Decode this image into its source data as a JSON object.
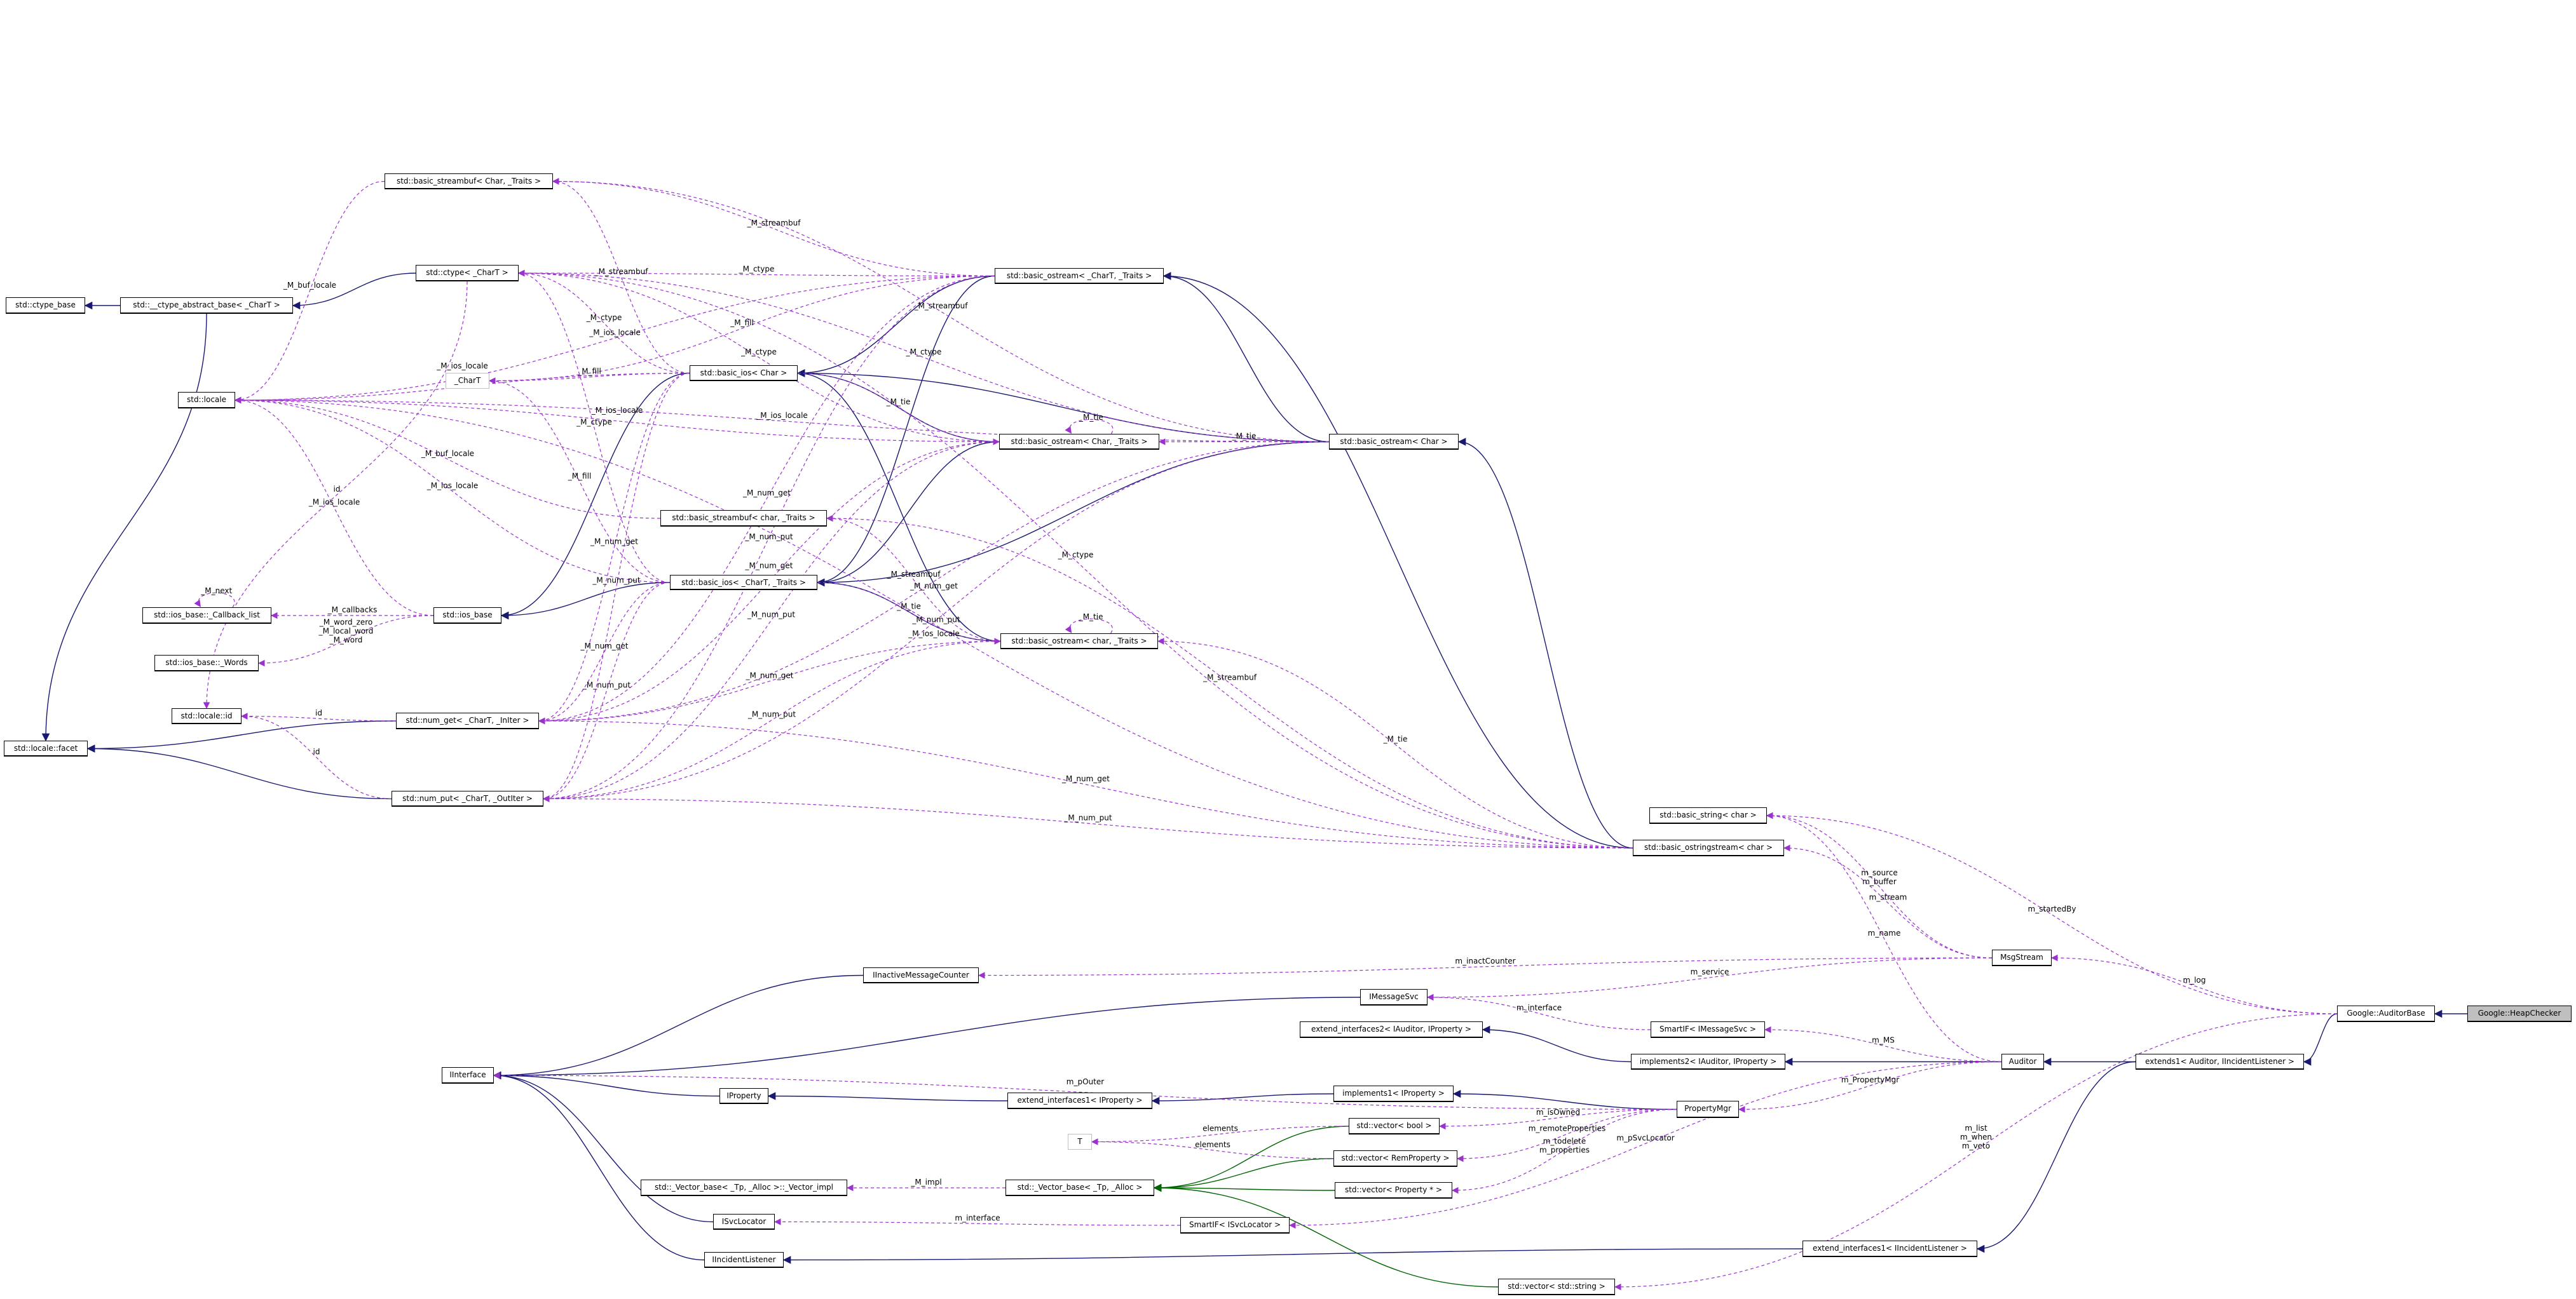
{
  "diagram": {
    "colors": {
      "inheritance": "#191970",
      "template": "#006400",
      "usage": "#9a32cd",
      "highlight_fill": "#bfbfbf",
      "undocumented_border": "#bfbfbf"
    },
    "nodes": [
      {
        "id": "ctype_base",
        "label": "std::ctype_base"
      },
      {
        "id": "ctab",
        "label": "std::__ctype_abstract_base< _CharT >"
      },
      {
        "id": "locale",
        "label": "std::locale"
      },
      {
        "id": "facet",
        "label": "std::locale::facet"
      },
      {
        "id": "lid",
        "label": "std::locale::id"
      },
      {
        "id": "cbl",
        "label": "std::ios_base::_Callback_list"
      },
      {
        "id": "words",
        "label": "std::ios_base::_Words"
      },
      {
        "id": "iosbase",
        "label": "std::ios_base"
      },
      {
        "id": "numget",
        "label": "std::num_get< _CharT, _InIter >"
      },
      {
        "id": "numput",
        "label": "std::num_put< _CharT, _OutIter >"
      },
      {
        "id": "ctype",
        "label": "std::ctype< _CharT >"
      },
      {
        "id": "sbChar",
        "label": "std::basic_streambuf< Char, _Traits >"
      },
      {
        "id": "charT",
        "label": "_CharT",
        "style": "gray"
      },
      {
        "id": "biosChar",
        "label": "std::basic_ios< Char >"
      },
      {
        "id": "biosT",
        "label": "std::basic_ios< _CharT, _Traits >"
      },
      {
        "id": "sbchar",
        "label": "std::basic_streambuf< char, _Traits >"
      },
      {
        "id": "boT",
        "label": "std::basic_ostream< _CharT, _Traits >"
      },
      {
        "id": "boCharT",
        "label": "std::basic_ostream< Char, _Traits >"
      },
      {
        "id": "bochar",
        "label": "std::basic_ostream< char, _Traits >"
      },
      {
        "id": "boChar",
        "label": "std::basic_ostream< Char >"
      },
      {
        "id": "bstring",
        "label": "std::basic_string< char >"
      },
      {
        "id": "boss",
        "label": "std::basic_ostringstream< char >"
      },
      {
        "id": "msgstream",
        "label": "MsgStream"
      },
      {
        "id": "imc",
        "label": "IInactiveMessageCounter"
      },
      {
        "id": "imsgsvc",
        "label": "IMessageSvc"
      },
      {
        "id": "ei2",
        "label": "extend_interfaces2< IAuditor, IProperty >"
      },
      {
        "id": "smsvc",
        "label": "SmartIF< IMessageSvc >"
      },
      {
        "id": "impl2",
        "label": "implements2< IAuditor, IProperty >"
      },
      {
        "id": "auditor",
        "label": "Auditor"
      },
      {
        "id": "extends1",
        "label": "extends1< Auditor, IIncidentListener >"
      },
      {
        "id": "abase",
        "label": "Google::AuditorBase"
      },
      {
        "id": "heap",
        "label": "Google::HeapChecker",
        "style": "highlight"
      },
      {
        "id": "iinterface",
        "label": "IInterface"
      },
      {
        "id": "iproperty",
        "label": "IProperty"
      },
      {
        "id": "ei1p",
        "label": "extend_interfaces1< IProperty >"
      },
      {
        "id": "impl1",
        "label": "implements1< IProperty >"
      },
      {
        "id": "propmgr",
        "label": "PropertyMgr"
      },
      {
        "id": "vbool",
        "label": "std::vector< bool >"
      },
      {
        "id": "vrem",
        "label": "std::vector< RemProperty >"
      },
      {
        "id": "vprop",
        "label": "std::vector< Property * >"
      },
      {
        "id": "T",
        "label": "T",
        "style": "gray"
      },
      {
        "id": "vimpl",
        "label": "std::_Vector_base< _Tp, _Alloc >::_Vector_impl"
      },
      {
        "id": "vbase",
        "label": "std::_Vector_base< _Tp, _Alloc >"
      },
      {
        "id": "svcloc",
        "label": "ISvcLocator"
      },
      {
        "id": "smloc",
        "label": "SmartIF< ISvcLocator >"
      },
      {
        "id": "iil",
        "label": "IIncidentListener"
      },
      {
        "id": "ei1il",
        "label": "extend_interfaces1< IIncidentListener >"
      },
      {
        "id": "vstr",
        "label": "std::vector< std::string >"
      }
    ],
    "edges": [
      {
        "from": "ctab",
        "to": "ctype_base",
        "kind": "inheritance",
        "label": ""
      },
      {
        "from": "ctype",
        "to": "ctab",
        "kind": "inheritance",
        "label": ""
      },
      {
        "from": "ctab",
        "to": "facet",
        "kind": "inheritance",
        "label": ""
      },
      {
        "from": "numget",
        "to": "facet",
        "kind": "inheritance",
        "label": ""
      },
      {
        "from": "numput",
        "to": "facet",
        "kind": "inheritance",
        "label": ""
      },
      {
        "from": "biosChar",
        "to": "iosbase",
        "kind": "inheritance",
        "label": ""
      },
      {
        "from": "biosT",
        "to": "iosbase",
        "kind": "inheritance",
        "label": ""
      },
      {
        "from": "boT",
        "to": "biosChar",
        "kind": "inheritance",
        "label": ""
      },
      {
        "from": "boT",
        "to": "biosT",
        "kind": "inheritance",
        "label": ""
      },
      {
        "from": "boCharT",
        "to": "biosChar",
        "kind": "inheritance",
        "label": ""
      },
      {
        "from": "boCharT",
        "to": "biosT",
        "kind": "inheritance",
        "label": ""
      },
      {
        "from": "bochar",
        "to": "biosChar",
        "kind": "inheritance",
        "label": ""
      },
      {
        "from": "bochar",
        "to": "biosT",
        "kind": "inheritance",
        "label": ""
      },
      {
        "from": "boChar",
        "to": "biosChar",
        "kind": "inheritance",
        "label": ""
      },
      {
        "from": "boChar",
        "to": "biosT",
        "kind": "inheritance",
        "label": ""
      },
      {
        "from": "boChar",
        "to": "boT",
        "kind": "inheritance",
        "label": ""
      },
      {
        "from": "boss",
        "to": "boChar",
        "kind": "inheritance",
        "label": ""
      },
      {
        "from": "boss",
        "to": "boT",
        "kind": "inheritance",
        "label": ""
      },
      {
        "from": "imc",
        "to": "iinterface",
        "kind": "inheritance",
        "label": ""
      },
      {
        "from": "imsgsvc",
        "to": "iinterface",
        "kind": "inheritance",
        "label": ""
      },
      {
        "from": "iproperty",
        "to": "iinterface",
        "kind": "inheritance",
        "label": ""
      },
      {
        "from": "svcloc",
        "to": "iinterface",
        "kind": "inheritance",
        "label": ""
      },
      {
        "from": "iil",
        "to": "iinterface",
        "kind": "inheritance",
        "label": ""
      },
      {
        "from": "ei1p",
        "to": "iproperty",
        "kind": "inheritance",
        "label": ""
      },
      {
        "from": "impl1",
        "to": "ei1p",
        "kind": "inheritance",
        "label": ""
      },
      {
        "from": "impl2",
        "to": "ei2",
        "kind": "inheritance",
        "label": ""
      },
      {
        "from": "propmgr",
        "to": "impl1",
        "kind": "inheritance",
        "label": ""
      },
      {
        "from": "auditor",
        "to": "impl2",
        "kind": "inheritance",
        "label": ""
      },
      {
        "from": "extends1",
        "to": "auditor",
        "kind": "inheritance",
        "label": ""
      },
      {
        "from": "extends1",
        "to": "ei1il",
        "kind": "inheritance",
        "label": ""
      },
      {
        "from": "ei1il",
        "to": "iil",
        "kind": "inheritance",
        "label": ""
      },
      {
        "from": "abase",
        "to": "extends1",
        "kind": "inheritance",
        "label": ""
      },
      {
        "from": "heap",
        "to": "abase",
        "kind": "inheritance",
        "label": ""
      },
      {
        "from": "vbool",
        "to": "vbase",
        "kind": "template",
        "label": ""
      },
      {
        "from": "vrem",
        "to": "vbase",
        "kind": "template",
        "label": ""
      },
      {
        "from": "vprop",
        "to": "vbase",
        "kind": "template",
        "label": ""
      },
      {
        "from": "vstr",
        "to": "vbase",
        "kind": "template",
        "label": ""
      },
      {
        "from": "iosbase",
        "to": "locale",
        "kind": "usage",
        "label": "_M_ios_locale"
      },
      {
        "from": "iosbase",
        "to": "cbl",
        "kind": "usage",
        "label": "_M_callbacks"
      },
      {
        "from": "cbl",
        "to": "cbl",
        "kind": "usage",
        "label": "_M_next"
      },
      {
        "from": "iosbase",
        "to": "words",
        "kind": "usage",
        "label": "_M_word_zero\n_M_local_word\n_M_word"
      },
      {
        "from": "ctype",
        "to": "lid",
        "kind": "usage",
        "label": "id"
      },
      {
        "from": "numget",
        "to": "lid",
        "kind": "usage",
        "label": "id"
      },
      {
        "from": "numput",
        "to": "lid",
        "kind": "usage",
        "label": "id"
      },
      {
        "from": "sbChar",
        "to": "locale",
        "kind": "usage",
        "label": "_M_buf_locale"
      },
      {
        "from": "sbchar",
        "to": "locale",
        "kind": "usage",
        "label": "_M_buf_locale"
      },
      {
        "from": "biosChar",
        "to": "locale",
        "kind": "usage",
        "label": "_M_ios_locale"
      },
      {
        "from": "biosChar",
        "to": "sbChar",
        "kind": "usage",
        "label": "_M_streambuf"
      },
      {
        "from": "biosChar",
        "to": "ctype",
        "kind": "usage",
        "label": "_M_ctype"
      },
      {
        "from": "biosChar",
        "to": "numget",
        "kind": "usage",
        "label": "_M_num_get"
      },
      {
        "from": "biosChar",
        "to": "numput",
        "kind": "usage",
        "label": "_M_num_put"
      },
      {
        "from": "biosChar",
        "to": "boCharT",
        "kind": "usage",
        "label": "_M_tie"
      },
      {
        "from": "biosChar",
        "to": "charT",
        "kind": "usage",
        "label": "_M_fill"
      },
      {
        "from": "biosT",
        "to": "locale",
        "kind": "usage",
        "label": "_M_ios_locale"
      },
      {
        "from": "biosT",
        "to": "ctype",
        "kind": "usage",
        "label": "_M_ctype"
      },
      {
        "from": "biosT",
        "to": "numget",
        "kind": "usage",
        "label": "_M_num_get"
      },
      {
        "from": "biosT",
        "to": "numput",
        "kind": "usage",
        "label": "_M_num_put"
      },
      {
        "from": "biosT",
        "to": "bochar",
        "kind": "usage",
        "label": "_M_tie"
      },
      {
        "from": "biosT",
        "to": "charT",
        "kind": "usage",
        "label": "_M_fill"
      },
      {
        "from": "boT",
        "to": "locale",
        "kind": "usage",
        "label": "_M_ios_locale"
      },
      {
        "from": "boT",
        "to": "ctype",
        "kind": "usage",
        "label": "_M_ctype"
      },
      {
        "from": "boT",
        "to": "sbChar",
        "kind": "usage",
        "label": "_M_streambuf"
      },
      {
        "from": "boT",
        "to": "charT",
        "kind": "usage",
        "label": "_M_fill"
      },
      {
        "from": "boT",
        "to": "numget",
        "kind": "usage",
        "label": "_M_num_get"
      },
      {
        "from": "boT",
        "to": "numput",
        "kind": "usage",
        "label": "_M_num_put"
      },
      {
        "from": "boCharT",
        "to": "boCharT",
        "kind": "usage",
        "label": "_M_tie"
      },
      {
        "from": "boCharT",
        "to": "locale",
        "kind": "usage",
        "label": "_M_ios_locale"
      },
      {
        "from": "boCharT",
        "to": "ctype",
        "kind": "usage",
        "label": "_M_ctype"
      },
      {
        "from": "boCharT",
        "to": "numget",
        "kind": "usage",
        "label": "_M_num_get"
      },
      {
        "from": "boCharT",
        "to": "numput",
        "kind": "usage",
        "label": "_M_num_put"
      },
      {
        "from": "bochar",
        "to": "bochar",
        "kind": "usage",
        "label": "_M_tie"
      },
      {
        "from": "bochar",
        "to": "sbchar",
        "kind": "usage",
        "label": "_M_streambuf"
      },
      {
        "from": "bochar",
        "to": "numget",
        "kind": "usage",
        "label": "_M_num_get"
      },
      {
        "from": "bochar",
        "to": "numput",
        "kind": "usage",
        "label": "_M_num_put"
      },
      {
        "from": "boChar",
        "to": "boCharT",
        "kind": "usage",
        "label": "_M_tie"
      },
      {
        "from": "boChar",
        "to": "locale",
        "kind": "usage",
        "label": "_M_ios_locale"
      },
      {
        "from": "boChar",
        "to": "ctype",
        "kind": "usage",
        "label": "_M_ctype"
      },
      {
        "from": "boChar",
        "to": "sbChar",
        "kind": "usage",
        "label": "_M_streambuf"
      },
      {
        "from": "boChar",
        "to": "numget",
        "kind": "usage",
        "label": "_M_num_get"
      },
      {
        "from": "boChar",
        "to": "numput",
        "kind": "usage",
        "label": "_M_num_put"
      },
      {
        "from": "boss",
        "to": "locale",
        "kind": "usage",
        "label": "_M_ios_locale"
      },
      {
        "from": "boss",
        "to": "ctype",
        "kind": "usage",
        "label": "_M_ctype"
      },
      {
        "from": "boss",
        "to": "sbchar",
        "kind": "usage",
        "label": "_M_streambuf"
      },
      {
        "from": "boss",
        "to": "bochar",
        "kind": "usage",
        "label": "_M_tie"
      },
      {
        "from": "boss",
        "to": "numget",
        "kind": "usage",
        "label": "_M_num_get"
      },
      {
        "from": "boss",
        "to": "numput",
        "kind": "usage",
        "label": "_M_num_put"
      },
      {
        "from": "msgstream",
        "to": "bstring",
        "kind": "usage",
        "label": "m_source\nm_buffer"
      },
      {
        "from": "msgstream",
        "to": "boss",
        "kind": "usage",
        "label": "m_stream"
      },
      {
        "from": "msgstream",
        "to": "imc",
        "kind": "usage",
        "label": "m_inactCounter"
      },
      {
        "from": "msgstream",
        "to": "imsgsvc",
        "kind": "usage",
        "label": "m_service"
      },
      {
        "from": "smsvc",
        "to": "imsgsvc",
        "kind": "usage",
        "label": "m_interface"
      },
      {
        "from": "auditor",
        "to": "bstring",
        "kind": "usage",
        "label": "m_name"
      },
      {
        "from": "auditor",
        "to": "smsvc",
        "kind": "usage",
        "label": "m_MS"
      },
      {
        "from": "auditor",
        "to": "propmgr",
        "kind": "usage",
        "label": "m_PropertyMgr"
      },
      {
        "from": "auditor",
        "to": "smloc",
        "kind": "usage",
        "label": "m_pSvcLocator"
      },
      {
        "from": "propmgr",
        "to": "iinterface",
        "kind": "usage",
        "label": "m_pOuter"
      },
      {
        "from": "propmgr",
        "to": "vbool",
        "kind": "usage",
        "label": "m_isOwned"
      },
      {
        "from": "propmgr",
        "to": "vrem",
        "kind": "usage",
        "label": "m_remoteProperties"
      },
      {
        "from": "propmgr",
        "to": "vprop",
        "kind": "usage",
        "label": "m_todelete\nm_properties"
      },
      {
        "from": "vbool",
        "to": "T",
        "kind": "usage",
        "label": "elements"
      },
      {
        "from": "vrem",
        "to": "T",
        "kind": "usage",
        "label": "elements"
      },
      {
        "from": "vbase",
        "to": "vimpl",
        "kind": "usage",
        "label": "_M_impl"
      },
      {
        "from": "smloc",
        "to": "svcloc",
        "kind": "usage",
        "label": "m_interface"
      },
      {
        "from": "abase",
        "to": "msgstream",
        "kind": "usage",
        "label": "m_log"
      },
      {
        "from": "abase",
        "to": "bstring",
        "kind": "usage",
        "label": "m_startedBy"
      },
      {
        "from": "abase",
        "to": "vstr",
        "kind": "usage",
        "label": "m_list\nm_when\nm_veto"
      }
    ]
  }
}
